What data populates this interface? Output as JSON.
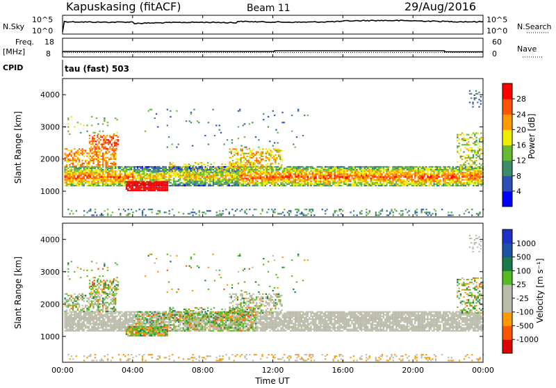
{
  "header": {
    "station": "Kapuskasing (fitACF)",
    "beam": "Beam 11",
    "date": "29/Aug/2016"
  },
  "top_panels": {
    "nsky_label": "N.Sky",
    "nsky_top": "10^5",
    "nsky_bottom": "10^0",
    "nsearch_label": "N.Search",
    "nsearch_top": "10^5",
    "nsearch_bottom": "10^0",
    "freq_label": "Freq.",
    "freq_unit": "[MHz]",
    "freq_top": "18",
    "freq_bottom": "8",
    "nave_label": "Nave",
    "nave_top": "60",
    "nave_bottom": "0",
    "cpid_label": "CPID",
    "cpid_value": "tau (fast) 503"
  },
  "colors": {
    "power": [
      "#0000ff",
      "#2e4fb8",
      "#3c8c6a",
      "#66bb33",
      "#eeee00",
      "#ff9900",
      "#ff5500",
      "#ff0000"
    ],
    "velocity": [
      "#dd0000",
      "#ff5500",
      "#ff9900",
      "#bbbbaa",
      "#bbbbaa",
      "#55bb22",
      "#1a7a4a",
      "#1a52a8",
      "#1f2fc8"
    ]
  },
  "chart_data": [
    {
      "type": "heatmap",
      "panel": "power",
      "ylabel": "Slant Range [km]",
      "yticks": [
        "1000",
        "2000",
        "3000",
        "4000"
      ],
      "ylim": [
        200,
        4500
      ],
      "xlim": [
        "00:00",
        "24:00"
      ],
      "colorbar_label": "Power [dB]",
      "colorbar_ticks": [
        "4",
        "8",
        "12",
        "16",
        "20",
        "24",
        "28"
      ],
      "colorbar_range": [
        0,
        32
      ]
    },
    {
      "type": "heatmap",
      "panel": "velocity",
      "ylabel": "Slant Range [km]",
      "yticks": [
        "1000",
        "2000",
        "3000",
        "4000"
      ],
      "ylim": [
        200,
        4500
      ],
      "xlim": [
        "00:00",
        "24:00"
      ],
      "colorbar_label": "Velocity [m s⁻¹]",
      "colorbar_ticks": [
        "1000",
        "500",
        "100",
        "25",
        "-25",
        "-100",
        "-500",
        "-1000"
      ]
    }
  ],
  "xaxis": {
    "label": "Time UT",
    "ticks": [
      "00:00",
      "04:00",
      "08:00",
      "12:00",
      "16:00",
      "20:00",
      "00:00"
    ]
  }
}
